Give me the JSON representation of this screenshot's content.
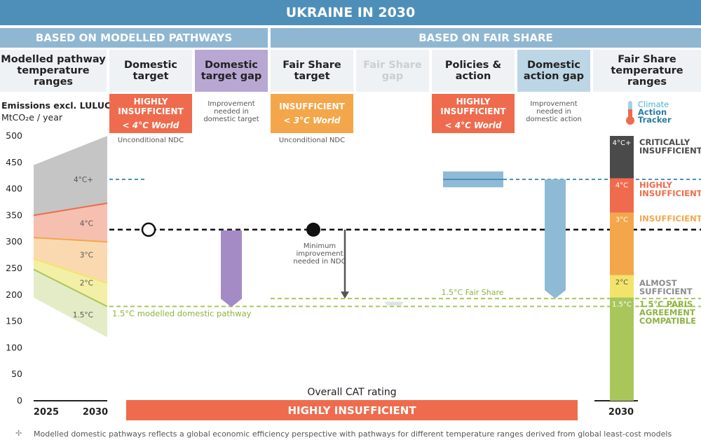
{
  "header": {
    "title": "UKRAINE IN 2030"
  },
  "sections": {
    "modelled": "BASED ON MODELLED PATHWAYS",
    "fair_share": "BASED ON FAIR SHARE"
  },
  "columns": {
    "c1": "Modelled pathway temperature ranges",
    "c2": "Domestic target",
    "c3": "Domestic target gap",
    "c4": "Fair Share target",
    "c5": "Fair Share gap",
    "c6": "Policies & action",
    "c7": "Domestic action gap",
    "c8": "Fair Share temperature ranges"
  },
  "yaxis": {
    "title": "Emissions excl. LULUCF",
    "unit": "MtCO₂e / year",
    "ticks": [
      "500",
      "450",
      "400",
      "350",
      "300",
      "250",
      "200",
      "150",
      "100",
      "50",
      "0"
    ]
  },
  "xaxis": {
    "left": [
      "2025",
      "2030"
    ],
    "right": "2030"
  },
  "ratings": {
    "domestic_target": {
      "label": "HIGHLY INSUFFICIENT",
      "world": "< 4°C World",
      "note": "Unconditional NDC",
      "color": "#ef6b4d"
    },
    "fair_share_target": {
      "label": "INSUFFICIENT",
      "world": "< 3°C World",
      "note": "Unconditional NDC",
      "color": "#f4a64a"
    },
    "policies": {
      "label": "HIGHLY INSUFFICIENT",
      "world": "< 4°C World",
      "color": "#ef6b4d"
    }
  },
  "notes": {
    "domestic_gap": "Improvement needed in domestic target",
    "action_gap": "Improvement needed in domestic action",
    "min_improvement": "Minimum improvement needed in NDC",
    "fair_share_line": "1.5°C Fair Share",
    "modelled_line": "1.5°C modelled domestic pathway"
  },
  "band_labels": [
    "4°C+",
    "4°C",
    "3°C",
    "2°C",
    "1.5°C"
  ],
  "legend": {
    "c4plus": {
      "temp": "4°C+",
      "label": "CRITICALLY INSUFFICIENT",
      "color": "#4a4a4a"
    },
    "c4": {
      "temp": "4°C",
      "label": "HIGHLY INSUFFICIENT",
      "color": "#ef6b4d"
    },
    "c3": {
      "temp": "3°C",
      "label": "INSUFFICIENT",
      "color": "#f4a64a"
    },
    "c2": {
      "temp": "2°C",
      "label": "ALMOST SUFFICIENT",
      "color": "#f2e46a"
    },
    "c15": {
      "temp": "1.5°C",
      "label": "1.5°C PARIS AGREEMENT COMPATIBLE",
      "color": "#a9c65b"
    }
  },
  "logo": {
    "line1": "Climate",
    "line2": "Action",
    "line3": "Tracker"
  },
  "overall": {
    "title": "Overall CAT rating",
    "label": "HIGHLY INSUFFICIENT",
    "color": "#ef6b4d"
  },
  "footnote": {
    "symbol": "✢",
    "text": "Modelled domestic pathways reflects a global economic efficiency perspective with pathways for different temperature ranges derived from global least-cost models"
  },
  "chart_data": {
    "type": "bar",
    "ylim": [
      0,
      500
    ],
    "domestic_target_2030": 323,
    "fair_share_target_2030": 323,
    "policies_range": [
      403,
      433
    ],
    "policies_mid": 418,
    "modelled_1_5_pathway": 178,
    "fair_share_1_5": 193,
    "bands_2030": {
      "4C+": [
        373,
        500
      ],
      "4C": [
        300,
        373
      ],
      "3C": [
        222,
        300
      ],
      "2C": [
        178,
        222
      ],
      "1_5C": [
        120,
        178
      ]
    },
    "bands_2025": {
      "4C+": [
        350,
        445
      ],
      "4C": [
        308,
        350
      ],
      "3C": [
        268,
        308
      ],
      "2C": [
        248,
        268
      ],
      "1_5C": [
        195,
        248
      ]
    },
    "fair_share_scale": {
      "4C+": [
        420,
        500
      ],
      "4C": [
        355,
        420
      ],
      "3C": [
        237,
        355
      ],
      "2C": [
        195,
        237
      ],
      "1_5C": [
        0,
        195
      ]
    }
  }
}
